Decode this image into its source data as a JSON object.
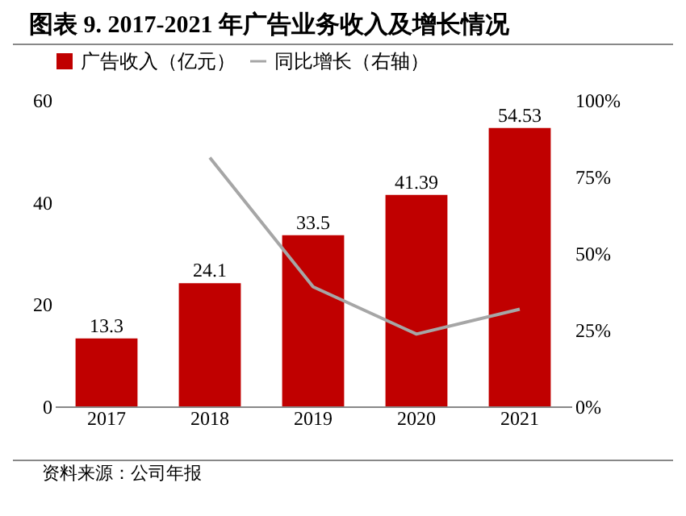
{
  "chart_data": {
    "type": "bar",
    "title": "图表 9.  2017-2021 年广告业务收入及增长情况",
    "annotations": [
      "资料来源：公司年报"
    ],
    "categories": [
      "2017",
      "2018",
      "2019",
      "2020",
      "2021"
    ],
    "series": [
      {
        "name": "广告收入（亿元）",
        "color": "#c00000",
        "values": [
          13.3,
          24.1,
          33.5,
          41.39,
          54.53
        ],
        "value_labels": [
          "13.3",
          "24.1",
          "33.5",
          "41.39",
          "54.53"
        ]
      },
      {
        "name": "同比增长（右轴）",
        "type": "line",
        "axis": "y2",
        "color": "#a6a6a6",
        "values": [
          null,
          81.2,
          39.0,
          23.6,
          31.7
        ]
      }
    ],
    "ylim": [
      0,
      60
    ],
    "yticks": [
      0,
      20,
      40,
      60
    ],
    "y2lim": [
      0,
      100
    ],
    "y2ticks": [
      {
        "value": 0,
        "label": "0%"
      },
      {
        "value": 25,
        "label": "25%"
      },
      {
        "value": 50,
        "label": "50%"
      },
      {
        "value": 75,
        "label": "75%"
      },
      {
        "value": 100,
        "label": "100%"
      }
    ],
    "grid": false,
    "legend": "top",
    "marker": "none",
    "line_style": "solid"
  }
}
